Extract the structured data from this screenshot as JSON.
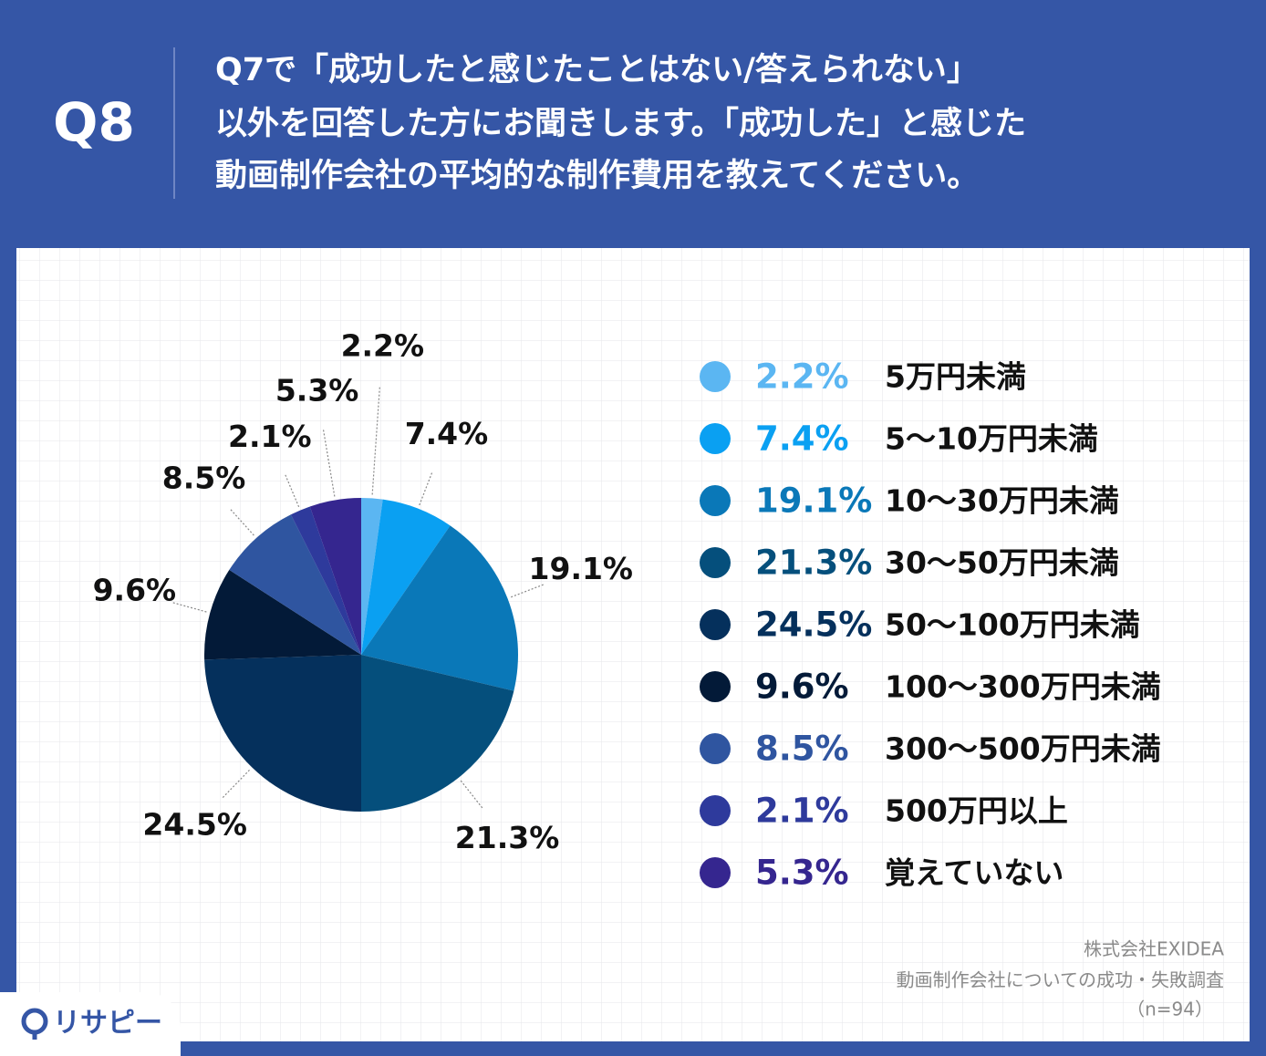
{
  "header": {
    "label": "Q8",
    "title_lines": [
      "Q7で「成功したと感じたことはない/答えられない」",
      "以外を回答した方にお聞きします。「成功した」と感じた",
      "動画制作会社の平均的な制作費用を教えてください。"
    ]
  },
  "chart_data": {
    "type": "pie",
    "categories": [
      "5万円未満",
      "5〜10万円未満",
      "10〜30万円未満",
      "30〜50万円未満",
      "50〜100万円未満",
      "100〜300万円未満",
      "300〜500万円未満",
      "500万円以上",
      "覚えていない"
    ],
    "values": [
      2.2,
      7.4,
      19.1,
      21.3,
      24.5,
      9.6,
      8.5,
      2.1,
      5.3
    ],
    "value_labels": [
      "2.2%",
      "7.4%",
      "19.1%",
      "21.3%",
      "24.5%",
      "9.6%",
      "8.5%",
      "2.1%",
      "5.3%"
    ],
    "colors": [
      "#5bb6f2",
      "#0aa0f2",
      "#0a78b8",
      "#054f7c",
      "#05305c",
      "#031a38",
      "#2f55a0",
      "#2e3a9c",
      "#35268f"
    ]
  },
  "source": [
    "株式会社EXIDEA",
    "動画制作会社についての成功・失敗調査",
    "（n=94）"
  ],
  "logo": "リサピー"
}
